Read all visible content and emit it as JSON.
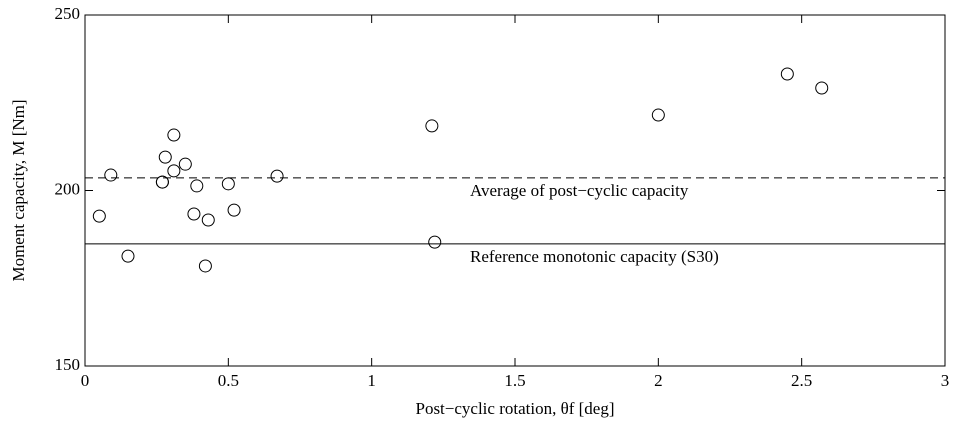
{
  "chart_data": {
    "type": "scatter",
    "xlabel": "Post−cyclic rotation, θf [deg]",
    "ylabel": "Moment capacity, M [Nm]",
    "x": [
      0.05,
      0.09,
      0.15,
      0.27,
      0.28,
      0.27,
      0.31,
      0.31,
      0.35,
      0.38,
      0.39,
      0.42,
      0.43,
      0.5,
      0.52,
      0.67,
      1.21,
      1.22,
      2.0,
      2.45,
      2.57
    ],
    "values": [
      192.7,
      204.4,
      181.3,
      202.4,
      209.5,
      202.4,
      215.8,
      205.6,
      207.5,
      193.3,
      201.3,
      178.5,
      191.6,
      201.9,
      194.4,
      204.1,
      218.4,
      185.3,
      221.5,
      233.2,
      229.2
    ],
    "color": "#000000",
    "xlim": [
      0,
      3
    ],
    "xticks": [
      0,
      0.5,
      1,
      1.5,
      2,
      2.5,
      3
    ],
    "ylim": [
      150,
      250
    ],
    "yticks": [
      150,
      200,
      250
    ],
    "hlines": [
      {
        "value": 203.6,
        "style": "dashed",
        "label": "Average of post−cyclic capacity"
      },
      {
        "value": 184.8,
        "style": "solid",
        "label": "Reference monotonic capacity (S30)"
      }
    ]
  }
}
